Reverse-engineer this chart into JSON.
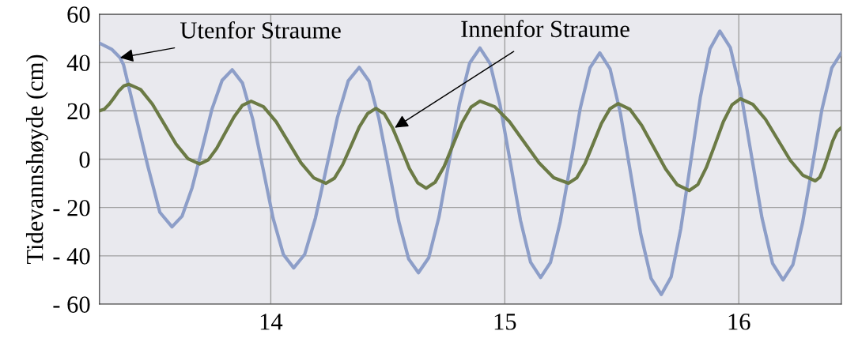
{
  "chart_data": {
    "type": "line",
    "ylabel": "Tidevannshøyde (cm)",
    "xlim": [
      13.268,
      16.438
    ],
    "xticks": [
      14,
      15,
      16
    ],
    "ylim": [
      -60,
      60
    ],
    "yticks": [
      {
        "value": -60,
        "label": "- 60"
      },
      {
        "value": -40,
        "label": "- 40"
      },
      {
        "value": -20,
        "label": "- 20"
      },
      0,
      20,
      40,
      60
    ],
    "grid": true,
    "legend": false,
    "line_style": "solid",
    "marker": "none",
    "series": [
      {
        "color": "#8d9ec8",
        "x": [
          13.268,
          13.32,
          13.356,
          13.371,
          13.423,
          13.475,
          13.526,
          13.578,
          13.621,
          13.664,
          13.707,
          13.749,
          13.792,
          13.835,
          13.879,
          13.923,
          13.967,
          14.01,
          14.054,
          14.098,
          14.145,
          14.191,
          14.238,
          14.285,
          14.331,
          14.378,
          14.42,
          14.462,
          14.505,
          14.547,
          14.589,
          14.631,
          14.675,
          14.719,
          14.763,
          14.806,
          14.85,
          14.894,
          14.937,
          14.98,
          15.024,
          15.067,
          15.11,
          15.153,
          15.195,
          15.237,
          15.28,
          15.322,
          15.364,
          15.406,
          15.45,
          15.494,
          15.538,
          15.581,
          15.625,
          15.669,
          15.711,
          15.752,
          15.794,
          15.836,
          15.877,
          15.919,
          15.964,
          16.009,
          16.054,
          16.099,
          16.144,
          16.189,
          16.231,
          16.272,
          16.314,
          16.355,
          16.397,
          16.438
        ],
        "values": [
          48,
          45.5,
          42,
          39,
          18,
          -3,
          -22,
          -28,
          -23.6,
          -11.8,
          4.5,
          20.8,
          32.6,
          37,
          31.5,
          16.5,
          -4,
          -24.5,
          -39.5,
          -45,
          -39.4,
          -24.3,
          -3.5,
          17.3,
          32.4,
          38,
          32.3,
          16.8,
          -4.5,
          -25.8,
          -41.3,
          -47,
          -40.8,
          -23.8,
          -0.5,
          22.8,
          39.8,
          46,
          39.6,
          22.3,
          -1.5,
          -25.3,
          -42.6,
          -49,
          -42.8,
          -25.8,
          -2.5,
          20.8,
          37.8,
          44,
          37.3,
          19,
          -6,
          -31,
          -49.3,
          -56,
          -48.7,
          -28.8,
          -1.5,
          25.8,
          45.7,
          53,
          46.1,
          27.3,
          1.5,
          -24.3,
          -43.1,
          -50,
          -43.7,
          -26.5,
          -3,
          20.5,
          37.7,
          44
        ]
      },
      {
        "color": "#6b7a45",
        "x": [
          13.268,
          13.289,
          13.31,
          13.331,
          13.351,
          13.372,
          13.393,
          13.444,
          13.494,
          13.545,
          13.595,
          13.646,
          13.696,
          13.733,
          13.769,
          13.806,
          13.843,
          13.879,
          13.916,
          13.969,
          14.023,
          14.076,
          14.129,
          14.183,
          14.236,
          14.272,
          14.307,
          14.343,
          14.378,
          14.414,
          14.449,
          14.485,
          14.521,
          14.557,
          14.592,
          14.628,
          14.664,
          14.702,
          14.741,
          14.779,
          14.817,
          14.856,
          14.894,
          14.957,
          15.02,
          15.083,
          15.146,
          15.209,
          15.272,
          15.307,
          15.343,
          15.378,
          15.413,
          15.449,
          15.484,
          15.535,
          15.585,
          15.636,
          15.687,
          15.737,
          15.788,
          15.825,
          15.861,
          15.898,
          15.934,
          15.971,
          16.007,
          16.06,
          16.114,
          16.167,
          16.22,
          16.274,
          16.327,
          16.346,
          16.364,
          16.383,
          16.401,
          16.42,
          16.438
        ],
        "values": [
          20,
          20.7,
          22.8,
          25.5,
          28.3,
          30.3,
          31,
          28.8,
          22.8,
          14.5,
          6.3,
          0.2,
          -2,
          -0.3,
          4.5,
          11,
          17.5,
          22.3,
          24,
          21.7,
          15.5,
          7,
          -1.5,
          -7.7,
          -10,
          -7.9,
          -2.3,
          5.5,
          13.3,
          18.9,
          21,
          18.8,
          12.8,
          4.5,
          -3.8,
          -9.8,
          -12,
          -9.6,
          -3,
          6,
          15,
          21.6,
          24,
          21.7,
          15.5,
          7,
          -1.5,
          -7.7,
          -10,
          -7.8,
          -1.8,
          6.5,
          14.8,
          20.8,
          23,
          20.6,
          14,
          5,
          -4,
          -10.6,
          -13,
          -10.5,
          -3.5,
          6,
          15.5,
          22.5,
          25,
          22.7,
          16.5,
          8,
          -0.5,
          -6.7,
          -9,
          -7.5,
          -3.5,
          2,
          7.5,
          11.5,
          13
        ]
      }
    ],
    "annotations": [
      {
        "text": "Utenfor Straume",
        "x": 13.356,
        "y": 42
      },
      {
        "text": "Innenfor Straume",
        "x": 14.53,
        "y": 13
      }
    ]
  }
}
